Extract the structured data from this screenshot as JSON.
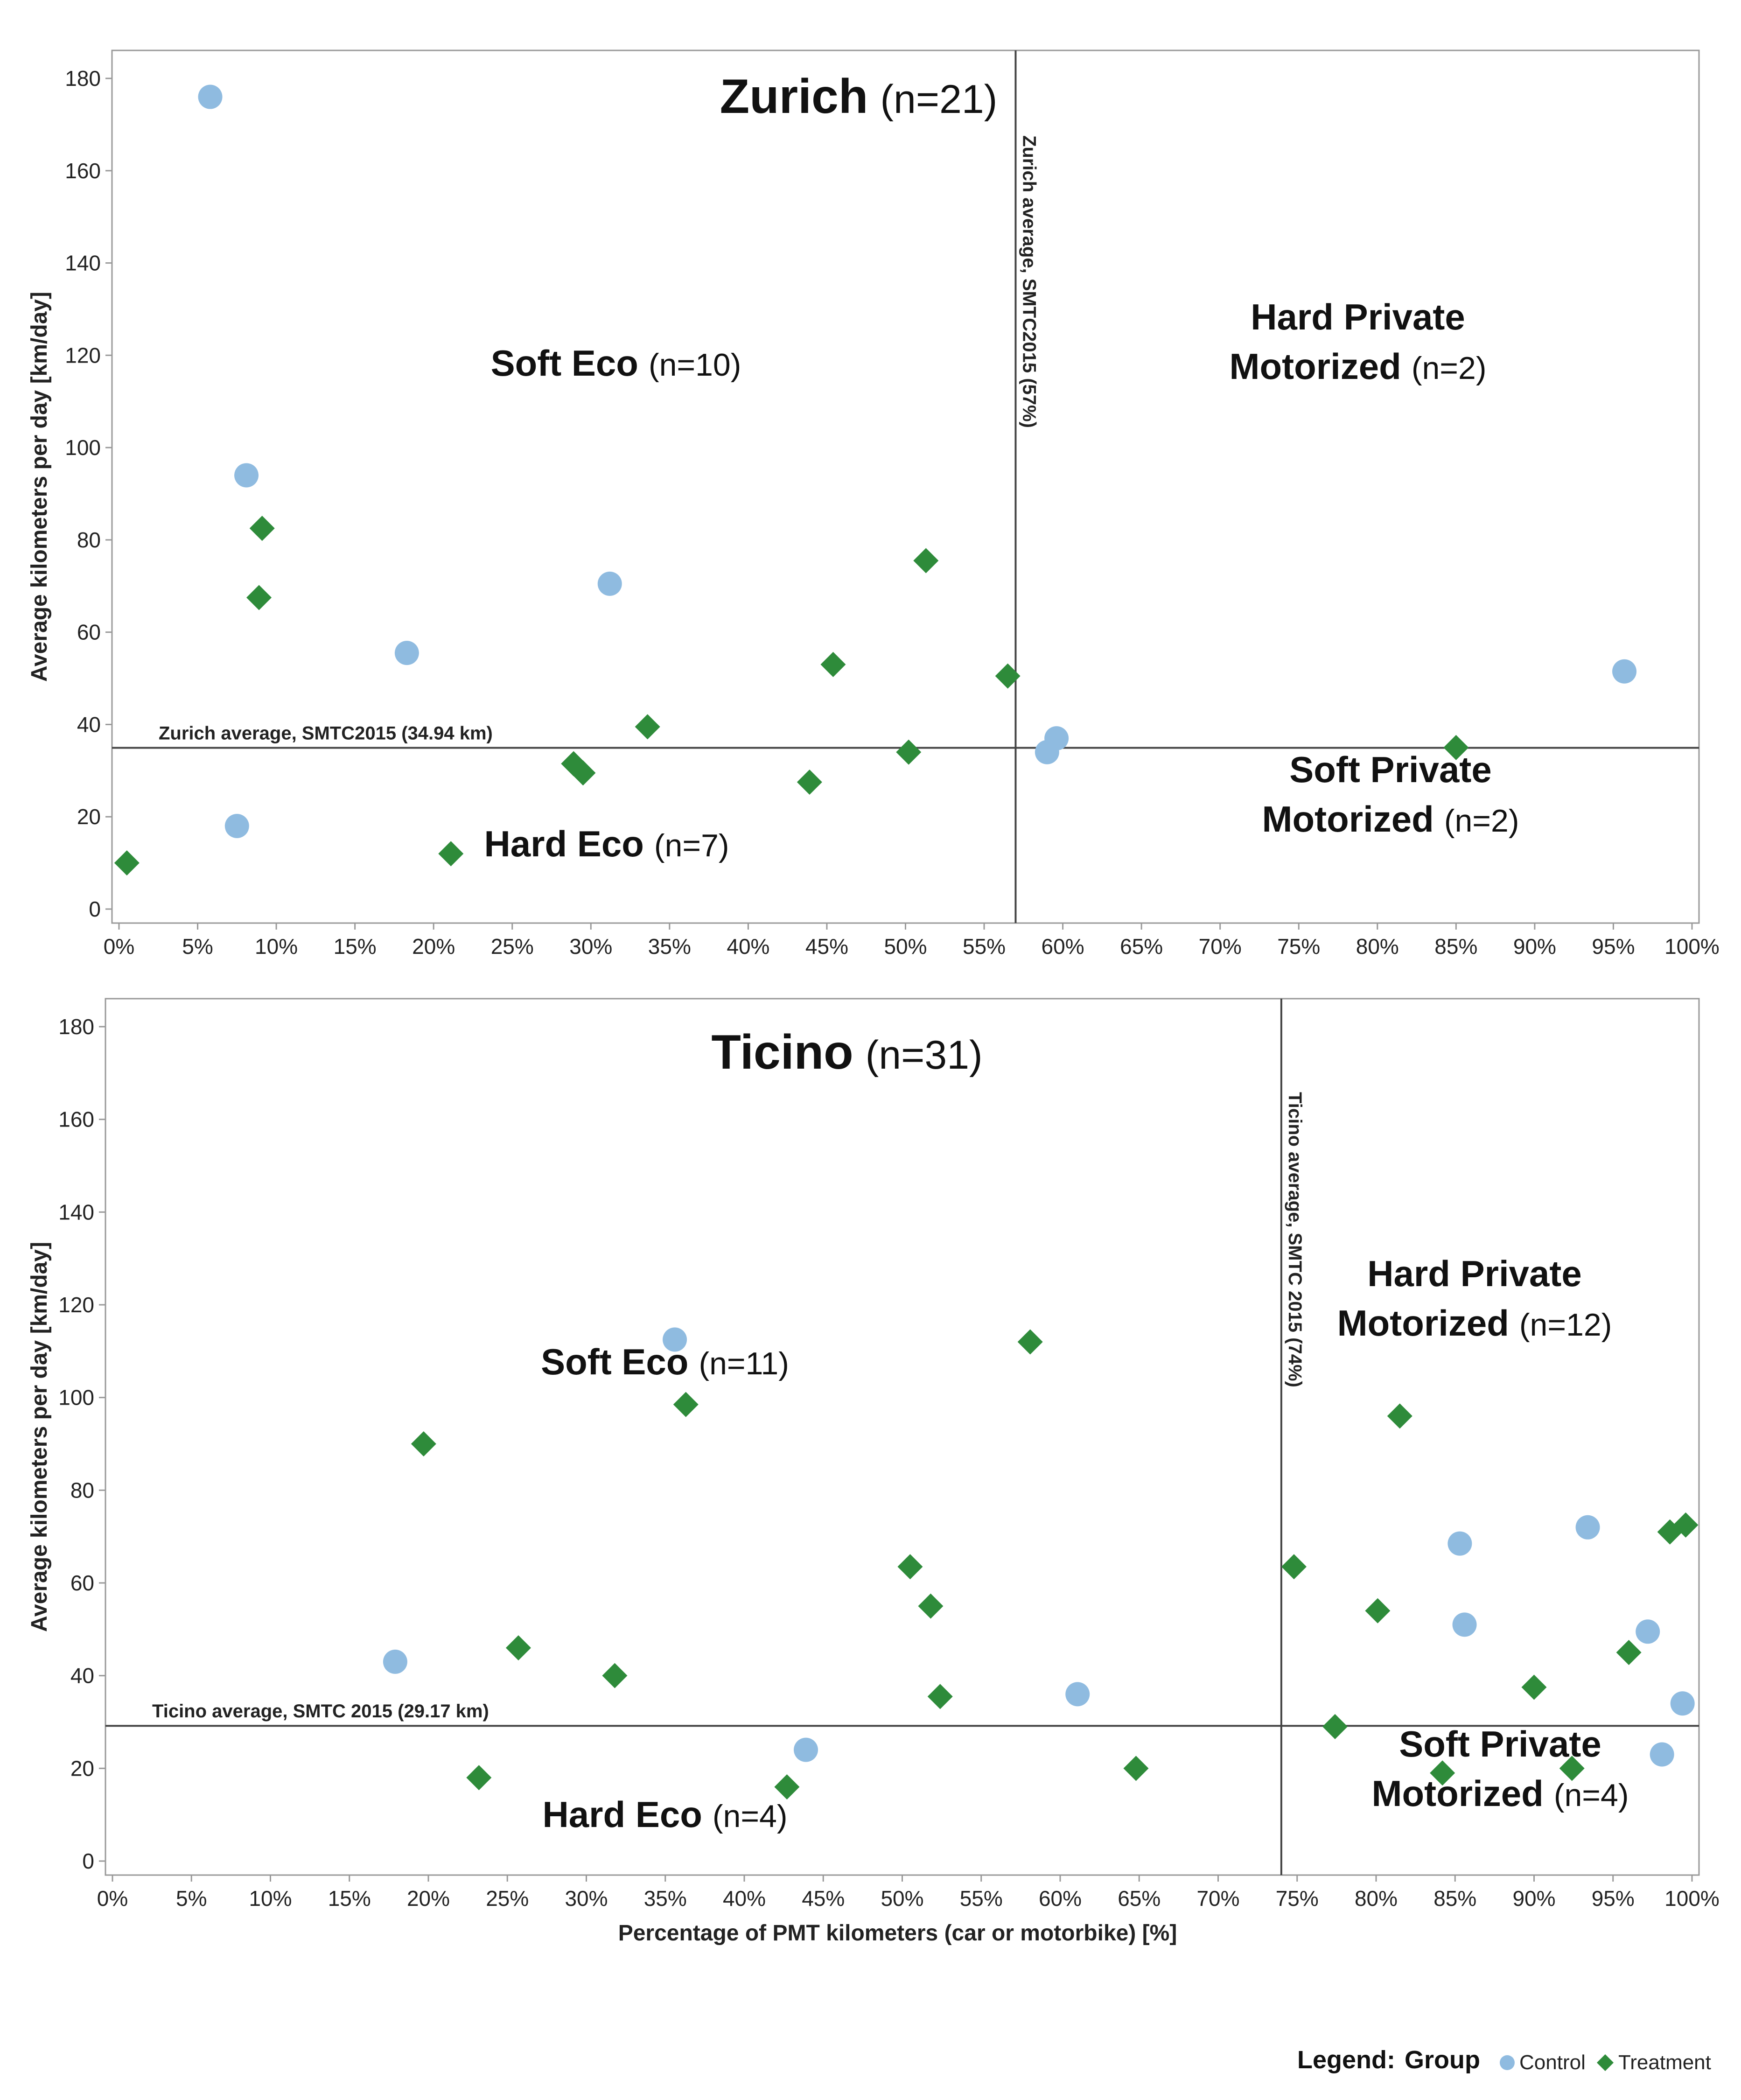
{
  "legend": {
    "label": "Legend:",
    "field": "Group",
    "items": [
      {
        "name": "Control",
        "shape": "circle",
        "color": "#8fbbe0"
      },
      {
        "name": "Treatment",
        "shape": "diamond",
        "color": "#2e8b3a"
      }
    ]
  },
  "colors": {
    "control": "#8fbbe0",
    "treatment": "#2e8b3a",
    "lines": "#444444",
    "frame": "#999999"
  },
  "x_tick_labels": [
    "0%",
    "5%",
    "10%",
    "15%",
    "20%",
    "25%",
    "30%",
    "35%",
    "40%",
    "45%",
    "50%",
    "55%",
    "60%",
    "65%",
    "70%",
    "75%",
    "80%",
    "85%",
    "90%",
    "95%",
    "100%"
  ],
  "y_tick_labels": [
    "0",
    "20",
    "40",
    "60",
    "80",
    "100",
    "120",
    "140",
    "160",
    "180"
  ],
  "chart_data": [
    {
      "type": "scatter",
      "title": "Zurich",
      "title_n": "(n=21)",
      "ylabel": "Average kilometers per day [km/day]",
      "xlabel": "",
      "xlim": [
        0,
        100
      ],
      "ylim": [
        0,
        180
      ],
      "grid": false,
      "vline": {
        "x": 57,
        "label": "Zurich average, SMTC2015 (57%)"
      },
      "hline": {
        "y": 34.94,
        "label": "Zurich average, SMTC2015 (34.94  km)"
      },
      "quadrants": {
        "top_left": {
          "name": [
            "Soft Eco"
          ],
          "n": "(n=10)"
        },
        "top_right": {
          "name": [
            "Hard Private",
            "Motorized"
          ],
          "n": "(n=2)"
        },
        "bottom_left": {
          "name": [
            "Hard Eco"
          ],
          "n": "(n=7)"
        },
        "bottom_right": {
          "name": [
            "Soft Private",
            "Motorized"
          ],
          "n": "(n=2)"
        }
      },
      "series": [
        {
          "name": "Control",
          "points": [
            {
              "x": 5.8,
              "y": 176
            },
            {
              "x": 8.1,
              "y": 94
            },
            {
              "x": 7.5,
              "y": 18
            },
            {
              "x": 18.3,
              "y": 55.5
            },
            {
              "x": 31.2,
              "y": 70.5
            },
            {
              "x": 59.0,
              "y": 34
            },
            {
              "x": 59.6,
              "y": 37
            },
            {
              "x": 95.7,
              "y": 51.5
            }
          ]
        },
        {
          "name": "Treatment",
          "points": [
            {
              "x": 0.5,
              "y": 10
            },
            {
              "x": 9.1,
              "y": 82.5
            },
            {
              "x": 8.9,
              "y": 67.5
            },
            {
              "x": 21.1,
              "y": 12
            },
            {
              "x": 28.9,
              "y": 31.5
            },
            {
              "x": 29.5,
              "y": 29.5
            },
            {
              "x": 33.6,
              "y": 39.5
            },
            {
              "x": 43.9,
              "y": 27.5
            },
            {
              "x": 45.4,
              "y": 53
            },
            {
              "x": 50.2,
              "y": 34
            },
            {
              "x": 51.3,
              "y": 75.5
            },
            {
              "x": 56.5,
              "y": 50.5
            },
            {
              "x": 85.0,
              "y": 35
            }
          ]
        }
      ]
    },
    {
      "type": "scatter",
      "title": "Ticino",
      "title_n": "(n=31)",
      "ylabel": "Average kilometers per day [km/day]",
      "xlabel": "Percentage of PMT kilometers (car or motorbike) [%]",
      "xlim": [
        0,
        100
      ],
      "ylim": [
        0,
        180
      ],
      "grid": false,
      "vline": {
        "x": 74,
        "label": "Ticino average, SMTC 2015 (74%)"
      },
      "hline": {
        "y": 29.17,
        "label": "Ticino average, SMTC 2015 (29.17 km)"
      },
      "quadrants": {
        "top_left": {
          "name": [
            "Soft Eco"
          ],
          "n": "(n=11)"
        },
        "top_right": {
          "name": [
            "Hard Private",
            "Motorized"
          ],
          "n": "(n=12)"
        },
        "bottom_left": {
          "name": [
            "Hard Eco"
          ],
          "n": "(n=4)"
        },
        "bottom_right": {
          "name": [
            "Soft Private",
            "Motorized"
          ],
          "n": "(n=4)"
        }
      },
      "series": [
        {
          "name": "Control",
          "points": [
            {
              "x": 17.9,
              "y": 43
            },
            {
              "x": 35.6,
              "y": 112.5
            },
            {
              "x": 43.9,
              "y": 24
            },
            {
              "x": 61.1,
              "y": 36
            },
            {
              "x": 85.3,
              "y": 68.5
            },
            {
              "x": 85.6,
              "y": 51
            },
            {
              "x": 93.4,
              "y": 72
            },
            {
              "x": 97.2,
              "y": 49.5
            },
            {
              "x": 98.1,
              "y": 23
            },
            {
              "x": 99.4,
              "y": 34
            }
          ]
        },
        {
          "name": "Treatment",
          "points": [
            {
              "x": 19.7,
              "y": 90
            },
            {
              "x": 23.2,
              "y": 18
            },
            {
              "x": 25.7,
              "y": 46
            },
            {
              "x": 31.8,
              "y": 40
            },
            {
              "x": 36.3,
              "y": 98.5
            },
            {
              "x": 42.7,
              "y": 16
            },
            {
              "x": 50.5,
              "y": 63.5
            },
            {
              "x": 51.8,
              "y": 55
            },
            {
              "x": 52.4,
              "y": 35.5
            },
            {
              "x": 58.1,
              "y": 112
            },
            {
              "x": 64.8,
              "y": 20
            },
            {
              "x": 74.8,
              "y": 63.5
            },
            {
              "x": 77.4,
              "y": 29
            },
            {
              "x": 80.1,
              "y": 54
            },
            {
              "x": 81.5,
              "y": 96
            },
            {
              "x": 84.2,
              "y": 19
            },
            {
              "x": 90.0,
              "y": 37.5
            },
            {
              "x": 92.4,
              "y": 20
            },
            {
              "x": 96.0,
              "y": 45
            },
            {
              "x": 98.6,
              "y": 71
            },
            {
              "x": 99.6,
              "y": 72.5
            }
          ]
        }
      ]
    }
  ]
}
